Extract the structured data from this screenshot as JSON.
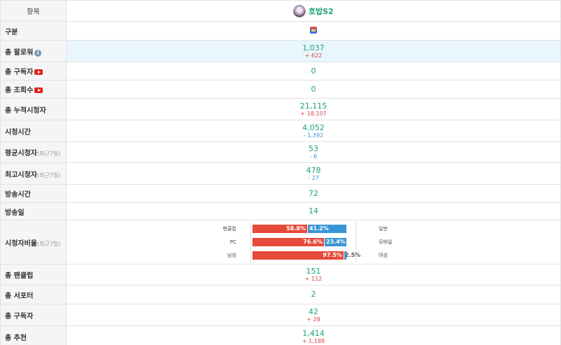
{
  "header": {
    "label": "항목",
    "channel_name": "호밥S2",
    "avatar_icon": "avatar-icon"
  },
  "rows": {
    "category": {
      "label": "구분",
      "icon": "afreecatv-platform-icon"
    },
    "followers": {
      "label": "총 팔로워",
      "value": "1,037",
      "delta": "+ 622"
    },
    "subscribers_yt": {
      "label": "총 구독자",
      "value": "0"
    },
    "views_yt": {
      "label": "총 조회수",
      "value": "0"
    },
    "cum_viewers": {
      "label": "총 누적시청자",
      "value": "21,115",
      "delta": "+ 18,107"
    },
    "watch_time": {
      "label": "시청시간",
      "value": "4,052",
      "delta": "- 1,392"
    },
    "avg_viewers": {
      "label": "평균시청자",
      "sub": "(최근7일)",
      "value": "53",
      "delta": "- 6"
    },
    "max_viewers": {
      "label": "최고시청자",
      "sub": "(최근7일)",
      "value": "478",
      "delta": "- 27"
    },
    "broadcast_time": {
      "label": "방송시간",
      "value": "72"
    },
    "broadcast_days": {
      "label": "방송일",
      "value": "14"
    },
    "viewer_ratio": {
      "label": "시청자비율",
      "sub": "(최근7일)",
      "bars": [
        {
          "left_label": "팬클럽",
          "right_label": "일반",
          "left_pct": 58.8,
          "right_pct": 41.2,
          "left_text": "58.8%",
          "right_text": "41.2%"
        },
        {
          "left_label": "PC",
          "right_label": "모바일",
          "left_pct": 76.6,
          "right_pct": 23.4,
          "left_text": "76.6%",
          "right_text": "23.4%"
        },
        {
          "left_label": "남성",
          "right_label": "여성",
          "left_pct": 97.5,
          "right_pct": 2.5,
          "left_text": "97.5%",
          "right_text": "2.5%"
        }
      ]
    },
    "fanclub": {
      "label": "총 팬클럽",
      "value": "151",
      "delta": "+ 112"
    },
    "supporters": {
      "label": "총 서포터",
      "value": "2"
    },
    "subscribers": {
      "label": "총 구독자",
      "value": "42",
      "delta": "+ 28"
    },
    "recommend": {
      "label": "총 추천",
      "value": "1,414",
      "delta": "+ 1,188"
    }
  },
  "colors": {
    "value": "#1aa37a",
    "up": "#d8434a",
    "down": "#3a8fd6",
    "bar_red": "#e64a3b",
    "bar_blue": "#3a95d6",
    "highlight": "#eaf6fd"
  }
}
